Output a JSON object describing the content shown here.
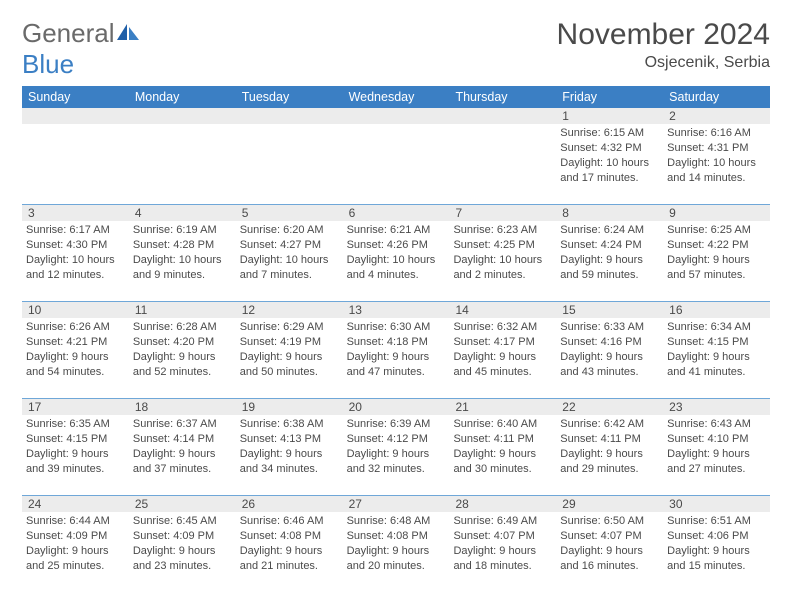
{
  "logo": {
    "general": "General",
    "blue": "Blue"
  },
  "title": "November 2024",
  "location": "Osjecenik, Serbia",
  "colors": {
    "header_bg": "#3b7fc4",
    "header_text": "#ffffff",
    "row_separator": "#6fa7d8",
    "daynum_bg": "#ececec",
    "text": "#4a4a4a",
    "page_bg": "#ffffff"
  },
  "day_names": [
    "Sunday",
    "Monday",
    "Tuesday",
    "Wednesday",
    "Thursday",
    "Friday",
    "Saturday"
  ],
  "weeks": [
    [
      {
        "n": "",
        "sr": "",
        "ss": "",
        "dl": ""
      },
      {
        "n": "",
        "sr": "",
        "ss": "",
        "dl": ""
      },
      {
        "n": "",
        "sr": "",
        "ss": "",
        "dl": ""
      },
      {
        "n": "",
        "sr": "",
        "ss": "",
        "dl": ""
      },
      {
        "n": "",
        "sr": "",
        "ss": "",
        "dl": ""
      },
      {
        "n": "1",
        "sr": "Sunrise: 6:15 AM",
        "ss": "Sunset: 4:32 PM",
        "dl": "Daylight: 10 hours and 17 minutes."
      },
      {
        "n": "2",
        "sr": "Sunrise: 6:16 AM",
        "ss": "Sunset: 4:31 PM",
        "dl": "Daylight: 10 hours and 14 minutes."
      }
    ],
    [
      {
        "n": "3",
        "sr": "Sunrise: 6:17 AM",
        "ss": "Sunset: 4:30 PM",
        "dl": "Daylight: 10 hours and 12 minutes."
      },
      {
        "n": "4",
        "sr": "Sunrise: 6:19 AM",
        "ss": "Sunset: 4:28 PM",
        "dl": "Daylight: 10 hours and 9 minutes."
      },
      {
        "n": "5",
        "sr": "Sunrise: 6:20 AM",
        "ss": "Sunset: 4:27 PM",
        "dl": "Daylight: 10 hours and 7 minutes."
      },
      {
        "n": "6",
        "sr": "Sunrise: 6:21 AM",
        "ss": "Sunset: 4:26 PM",
        "dl": "Daylight: 10 hours and 4 minutes."
      },
      {
        "n": "7",
        "sr": "Sunrise: 6:23 AM",
        "ss": "Sunset: 4:25 PM",
        "dl": "Daylight: 10 hours and 2 minutes."
      },
      {
        "n": "8",
        "sr": "Sunrise: 6:24 AM",
        "ss": "Sunset: 4:24 PM",
        "dl": "Daylight: 9 hours and 59 minutes."
      },
      {
        "n": "9",
        "sr": "Sunrise: 6:25 AM",
        "ss": "Sunset: 4:22 PM",
        "dl": "Daylight: 9 hours and 57 minutes."
      }
    ],
    [
      {
        "n": "10",
        "sr": "Sunrise: 6:26 AM",
        "ss": "Sunset: 4:21 PM",
        "dl": "Daylight: 9 hours and 54 minutes."
      },
      {
        "n": "11",
        "sr": "Sunrise: 6:28 AM",
        "ss": "Sunset: 4:20 PM",
        "dl": "Daylight: 9 hours and 52 minutes."
      },
      {
        "n": "12",
        "sr": "Sunrise: 6:29 AM",
        "ss": "Sunset: 4:19 PM",
        "dl": "Daylight: 9 hours and 50 minutes."
      },
      {
        "n": "13",
        "sr": "Sunrise: 6:30 AM",
        "ss": "Sunset: 4:18 PM",
        "dl": "Daylight: 9 hours and 47 minutes."
      },
      {
        "n": "14",
        "sr": "Sunrise: 6:32 AM",
        "ss": "Sunset: 4:17 PM",
        "dl": "Daylight: 9 hours and 45 minutes."
      },
      {
        "n": "15",
        "sr": "Sunrise: 6:33 AM",
        "ss": "Sunset: 4:16 PM",
        "dl": "Daylight: 9 hours and 43 minutes."
      },
      {
        "n": "16",
        "sr": "Sunrise: 6:34 AM",
        "ss": "Sunset: 4:15 PM",
        "dl": "Daylight: 9 hours and 41 minutes."
      }
    ],
    [
      {
        "n": "17",
        "sr": "Sunrise: 6:35 AM",
        "ss": "Sunset: 4:15 PM",
        "dl": "Daylight: 9 hours and 39 minutes."
      },
      {
        "n": "18",
        "sr": "Sunrise: 6:37 AM",
        "ss": "Sunset: 4:14 PM",
        "dl": "Daylight: 9 hours and 37 minutes."
      },
      {
        "n": "19",
        "sr": "Sunrise: 6:38 AM",
        "ss": "Sunset: 4:13 PM",
        "dl": "Daylight: 9 hours and 34 minutes."
      },
      {
        "n": "20",
        "sr": "Sunrise: 6:39 AM",
        "ss": "Sunset: 4:12 PM",
        "dl": "Daylight: 9 hours and 32 minutes."
      },
      {
        "n": "21",
        "sr": "Sunrise: 6:40 AM",
        "ss": "Sunset: 4:11 PM",
        "dl": "Daylight: 9 hours and 30 minutes."
      },
      {
        "n": "22",
        "sr": "Sunrise: 6:42 AM",
        "ss": "Sunset: 4:11 PM",
        "dl": "Daylight: 9 hours and 29 minutes."
      },
      {
        "n": "23",
        "sr": "Sunrise: 6:43 AM",
        "ss": "Sunset: 4:10 PM",
        "dl": "Daylight: 9 hours and 27 minutes."
      }
    ],
    [
      {
        "n": "24",
        "sr": "Sunrise: 6:44 AM",
        "ss": "Sunset: 4:09 PM",
        "dl": "Daylight: 9 hours and 25 minutes."
      },
      {
        "n": "25",
        "sr": "Sunrise: 6:45 AM",
        "ss": "Sunset: 4:09 PM",
        "dl": "Daylight: 9 hours and 23 minutes."
      },
      {
        "n": "26",
        "sr": "Sunrise: 6:46 AM",
        "ss": "Sunset: 4:08 PM",
        "dl": "Daylight: 9 hours and 21 minutes."
      },
      {
        "n": "27",
        "sr": "Sunrise: 6:48 AM",
        "ss": "Sunset: 4:08 PM",
        "dl": "Daylight: 9 hours and 20 minutes."
      },
      {
        "n": "28",
        "sr": "Sunrise: 6:49 AM",
        "ss": "Sunset: 4:07 PM",
        "dl": "Daylight: 9 hours and 18 minutes."
      },
      {
        "n": "29",
        "sr": "Sunrise: 6:50 AM",
        "ss": "Sunset: 4:07 PM",
        "dl": "Daylight: 9 hours and 16 minutes."
      },
      {
        "n": "30",
        "sr": "Sunrise: 6:51 AM",
        "ss": "Sunset: 4:06 PM",
        "dl": "Daylight: 9 hours and 15 minutes."
      }
    ]
  ]
}
